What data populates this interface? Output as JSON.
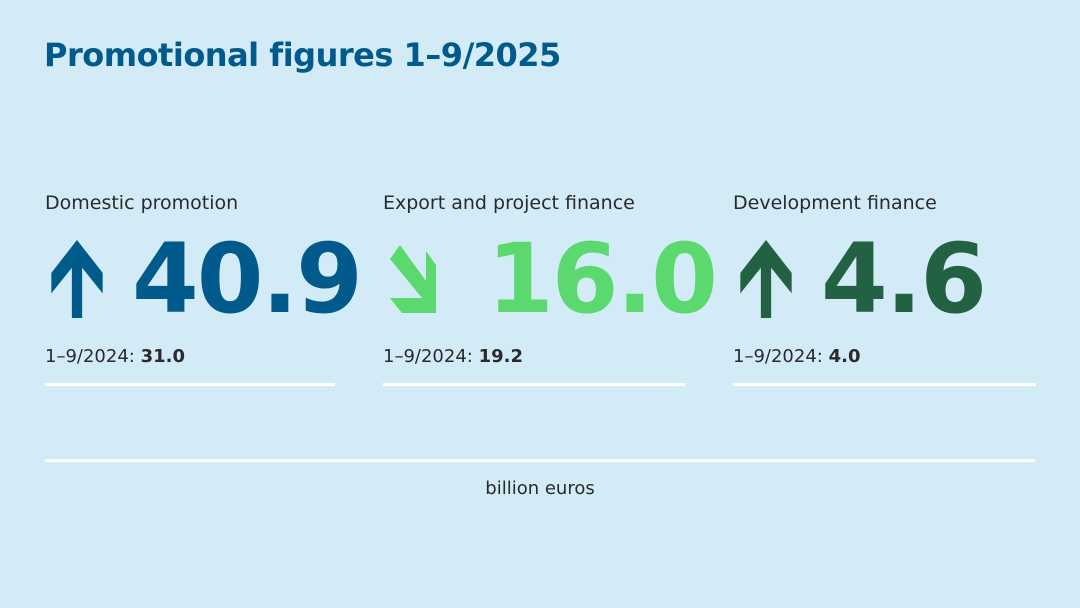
{
  "title": "Promotional figures 1–9/2025",
  "colors": {
    "background": "#d3ebf6",
    "domestic": "#005a8c",
    "export": "#5bd96e",
    "development": "#236143",
    "rule": "#ffffff"
  },
  "metrics": [
    {
      "label": "Domestic promotion",
      "value": "40.9",
      "trend": "up",
      "icon": "arrow-up-icon",
      "prev_label": "1–9/2024:",
      "prev_value": "31.0"
    },
    {
      "label": "Export and project finance",
      "value": "16.0",
      "trend": "down",
      "icon": "arrow-down-right-icon",
      "prev_label": "1–9/2024:",
      "prev_value": "19.2"
    },
    {
      "label": "Development finance",
      "value": "4.6",
      "trend": "up",
      "icon": "arrow-up-icon",
      "prev_label": "1–9/2024:",
      "prev_value": "4.0"
    }
  ],
  "unit": "billion euros"
}
